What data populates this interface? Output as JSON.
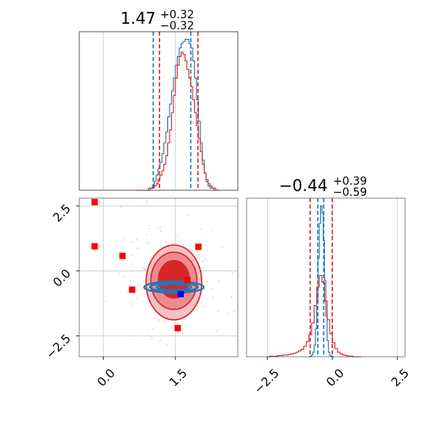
{
  "chart_data": [
    {
      "type": "histogram",
      "panel": "top-left",
      "title": {
        "value": "1.47",
        "sup": "+0.32",
        "sub": "−0.32"
      },
      "xlim": [
        -0.5,
        2.8
      ],
      "grid": true,
      "series": [
        {
          "name": "",
          "color": "#1f77b4",
          "quantiles": [
            1.04,
            1.47,
            1.82
          ],
          "bin_start": 0.7,
          "bin_width": 0.04,
          "counts": [
            0,
            0,
            0,
            0,
            0,
            0,
            1,
            1,
            2,
            4,
            7,
            10,
            13,
            17,
            22,
            27,
            34,
            40,
            46,
            52,
            58,
            62,
            66,
            68,
            69,
            70,
            70,
            68,
            66,
            60,
            52,
            42,
            32,
            22,
            14,
            8,
            4,
            2,
            1,
            1,
            0,
            0,
            0
          ]
        },
        {
          "name": "",
          "color": "#d62728",
          "quantiles": [
            1.17,
            1.47,
            1.97
          ],
          "bin_start": 0.7,
          "bin_width": 0.04,
          "counts": [
            0,
            0,
            0,
            0,
            0,
            0,
            0,
            1,
            1,
            2,
            3,
            5,
            7,
            9,
            12,
            16,
            22,
            28,
            36,
            44,
            52,
            58,
            62,
            64,
            63,
            60,
            56,
            52,
            48,
            42,
            36,
            30,
            24,
            18,
            12,
            8,
            5,
            3,
            2,
            1,
            1,
            0,
            0
          ]
        }
      ]
    },
    {
      "type": "histogram",
      "panel": "bottom-right",
      "title": {
        "value": "−0.44",
        "sup": "+0.39",
        "sub": "−0.59"
      },
      "xlim": [
        -3.3,
        2.8
      ],
      "xticks": [
        "−2.5",
        "0.0",
        "2.5"
      ],
      "grid": true,
      "series": [
        {
          "name": "",
          "color": "#1f77b4",
          "quantiles": [
            -0.56,
            -0.44,
            -0.33
          ],
          "bin_start": -0.9,
          "bin_width": 0.05,
          "counts": [
            0,
            1,
            3,
            8,
            20,
            48,
            98,
            170,
            230,
            260,
            248,
            200,
            132,
            70,
            28,
            8,
            2,
            1,
            0
          ]
        },
        {
          "name": "",
          "color": "#d62728",
          "quantiles": [
            -0.85,
            -0.44,
            0.0
          ],
          "bin_start": -2.5,
          "bin_width": 0.1,
          "counts": [
            0,
            1,
            1,
            1,
            2,
            2,
            3,
            3,
            4,
            5,
            6,
            8,
            10,
            13,
            18,
            26,
            38,
            58,
            88,
            120,
            140,
            128,
            96,
            64,
            40,
            24,
            14,
            8,
            5,
            3,
            2,
            1,
            1,
            0,
            0,
            0
          ]
        }
      ]
    },
    {
      "type": "scatter",
      "panel": "bottom-left",
      "xlim": [
        -0.5,
        2.8
      ],
      "ylim": [
        -3.3,
        2.8
      ],
      "xticks": [
        "0.0",
        "1.5"
      ],
      "yticks": [
        "2.5",
        "0.0",
        "−2.5"
      ],
      "grid": true,
      "series": [
        {
          "name": "",
          "color": "#d62728",
          "kind": "contour",
          "center": [
            1.47,
            -0.44
          ],
          "levels": [
            {
              "rx": 0.58,
              "ry": 1.44,
              "fill": "#f6c2c4"
            },
            {
              "rx": 0.48,
              "ry": 1.1,
              "fill": "#ee8a8e"
            },
            {
              "rx": 0.32,
              "ry": 0.72,
              "fill": "#d62728"
            }
          ]
        },
        {
          "name": "",
          "color": "#1f77b4",
          "kind": "contour",
          "center": [
            1.47,
            -0.44
          ],
          "levels": [
            {
              "rx": 0.62,
              "ry": 0.22
            },
            {
              "rx": 0.5,
              "ry": 0.16
            },
            {
              "rx": 0.36,
              "ry": 0.11
            }
          ]
        },
        {
          "name": "",
          "color": "#ff0000",
          "kind": "markers",
          "points": [
            [
              -0.18,
              2.65
            ],
            [
              -0.18,
              0.95
            ],
            [
              0.4,
              0.58
            ],
            [
              0.6,
              -0.72
            ],
            [
              1.55,
              -2.2
            ],
            [
              1.98,
              0.93
            ],
            [
              1.75,
              -0.35
            ]
          ]
        },
        {
          "name": "",
          "color": "#0000ff",
          "kind": "markers",
          "points": [
            [
              1.61,
              -0.89
            ]
          ]
        }
      ]
    }
  ],
  "colors": {
    "blue": "#1f77b4",
    "red": "#d62728",
    "marker_red": "#ff0000",
    "marker_blue": "#0000ff",
    "grid": "#b0b0b0"
  }
}
